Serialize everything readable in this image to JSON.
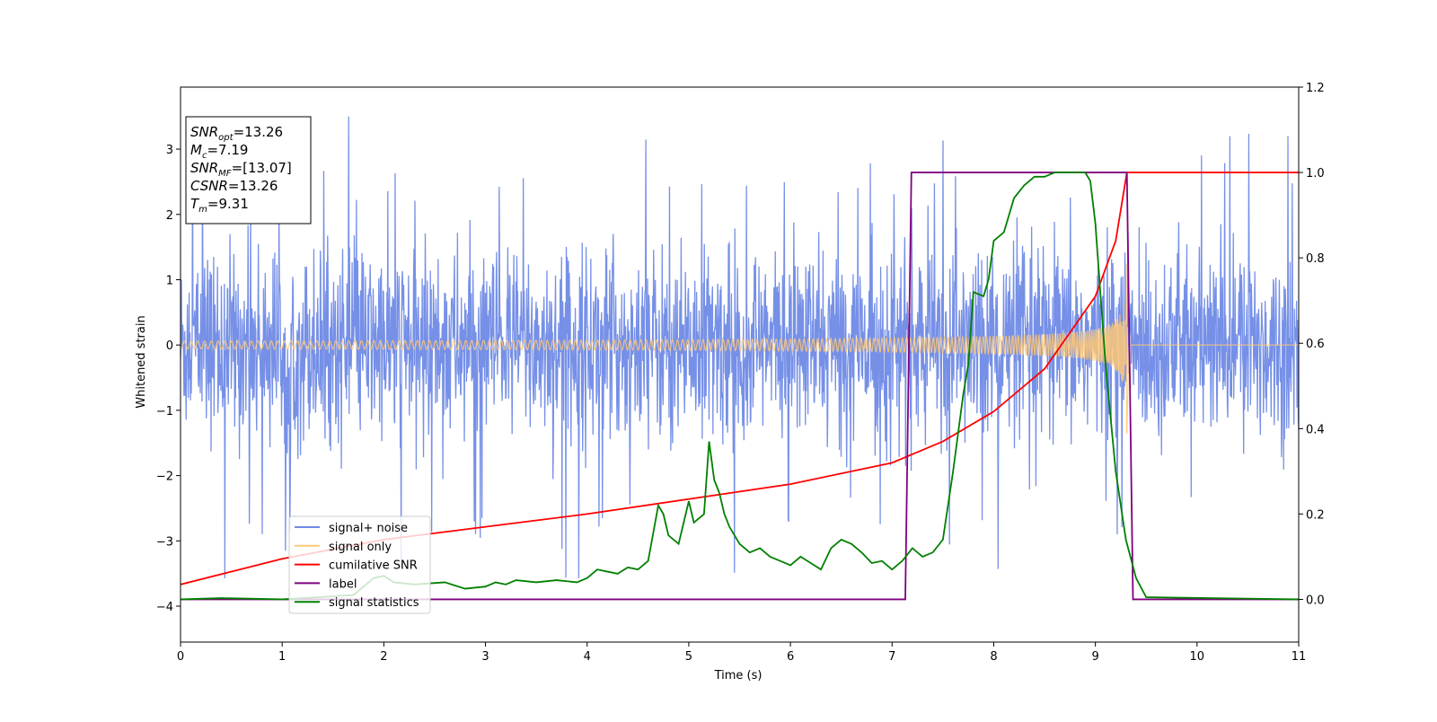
{
  "chart_data": {
    "type": "line",
    "xlabel": "Time (s)",
    "ylabel": "Whitened strain",
    "xlim": [
      0,
      11
    ],
    "ylim_left": [
      -4.55,
      3.95
    ],
    "ylim_right": [
      -0.1,
      1.2
    ],
    "x_ticks": [
      "0",
      "1",
      "2",
      "3",
      "4",
      "5",
      "6",
      "7",
      "8",
      "9",
      "10",
      "11"
    ],
    "y_ticks_left": [
      "−4",
      "−3",
      "−2",
      "−1",
      "0",
      "1",
      "2",
      "3"
    ],
    "y_ticks_right": [
      "0.0",
      "0.2",
      "0.4",
      "0.6",
      "0.8",
      "1.0",
      "1.2"
    ],
    "grid": false,
    "legend_position": "lower-left",
    "info_box": {
      "position": "top-left",
      "lines": [
        {
          "base": "SNR",
          "sub": "opt",
          "value": "=13.26"
        },
        {
          "base": "M",
          "sub": "c",
          "value": "=7.19"
        },
        {
          "base": "SNR",
          "sub": "MF",
          "value": "=[13.07]"
        },
        {
          "base": "CSNR",
          "sub": "",
          "value": "=13.26"
        },
        {
          "base": "T",
          "sub": "m",
          "value": "=9.31"
        }
      ]
    },
    "series": [
      {
        "name": "signal+ noise",
        "color": "#6f8ae6",
        "axis": "left",
        "style": "noise band, roughly ±1.5 with spikes to about ±3.5",
        "x_range": [
          0,
          11
        ]
      },
      {
        "name": "signal only",
        "color": "#ffc876",
        "axis": "left",
        "style": "chirp, amplitude growing to about 1.3 near merger",
        "x_range": [
          0,
          9.31
        ],
        "merger_time": 9.31
      },
      {
        "name": "cumilative SNR",
        "color": "#ff0000",
        "axis": "right",
        "x": [
          0,
          1,
          2,
          3,
          4,
          5,
          6,
          7,
          7.5,
          8,
          8.5,
          9,
          9.2,
          9.31,
          11
        ],
        "values": [
          0.035,
          0.095,
          0.14,
          0.17,
          0.2,
          0.235,
          0.27,
          0.32,
          0.37,
          0.44,
          0.54,
          0.71,
          0.84,
          1.0,
          1.0
        ]
      },
      {
        "name": "label",
        "color": "#800080",
        "axis": "right",
        "x": [
          0,
          7.13,
          7.19,
          9.31,
          9.37,
          11
        ],
        "values": [
          0,
          0,
          1,
          1,
          0,
          0
        ]
      },
      {
        "name": "signal statistics",
        "color": "#008000",
        "axis": "right",
        "x": [
          0,
          0.4,
          1.0,
          1.7,
          1.9,
          2.0,
          2.1,
          2.3,
          2.6,
          2.8,
          3.0,
          3.1,
          3.2,
          3.3,
          3.5,
          3.7,
          3.9,
          4.0,
          4.1,
          4.2,
          4.3,
          4.4,
          4.5,
          4.55,
          4.6,
          4.7,
          4.75,
          4.8,
          4.9,
          5.0,
          5.05,
          5.1,
          5.15,
          5.2,
          5.25,
          5.3,
          5.35,
          5.4,
          5.5,
          5.6,
          5.7,
          5.8,
          5.9,
          6.0,
          6.1,
          6.2,
          6.3,
          6.4,
          6.5,
          6.6,
          6.7,
          6.8,
          6.9,
          7.0,
          7.1,
          7.2,
          7.3,
          7.4,
          7.5,
          7.6,
          7.7,
          7.75,
          7.8,
          7.9,
          7.95,
          8.0,
          8.1,
          8.2,
          8.3,
          8.4,
          8.5,
          8.6,
          8.7,
          8.8,
          8.9,
          8.95,
          9.0,
          9.1,
          9.2,
          9.3,
          9.4,
          9.5,
          11
        ],
        "values": [
          0.0,
          0.003,
          0.0,
          0.01,
          0.05,
          0.055,
          0.04,
          0.035,
          0.04,
          0.025,
          0.03,
          0.04,
          0.035,
          0.045,
          0.04,
          0.045,
          0.04,
          0.05,
          0.07,
          0.065,
          0.06,
          0.075,
          0.07,
          0.08,
          0.09,
          0.22,
          0.2,
          0.15,
          0.13,
          0.23,
          0.18,
          0.19,
          0.2,
          0.37,
          0.28,
          0.25,
          0.2,
          0.17,
          0.13,
          0.11,
          0.12,
          0.1,
          0.09,
          0.08,
          0.1,
          0.085,
          0.07,
          0.12,
          0.14,
          0.13,
          0.11,
          0.085,
          0.09,
          0.07,
          0.09,
          0.12,
          0.1,
          0.11,
          0.14,
          0.3,
          0.48,
          0.55,
          0.72,
          0.71,
          0.75,
          0.84,
          0.86,
          0.94,
          0.97,
          0.99,
          0.99,
          1.0,
          1.0,
          1.0,
          1.0,
          0.98,
          0.88,
          0.55,
          0.3,
          0.14,
          0.05,
          0.005,
          0.0
        ]
      }
    ]
  }
}
